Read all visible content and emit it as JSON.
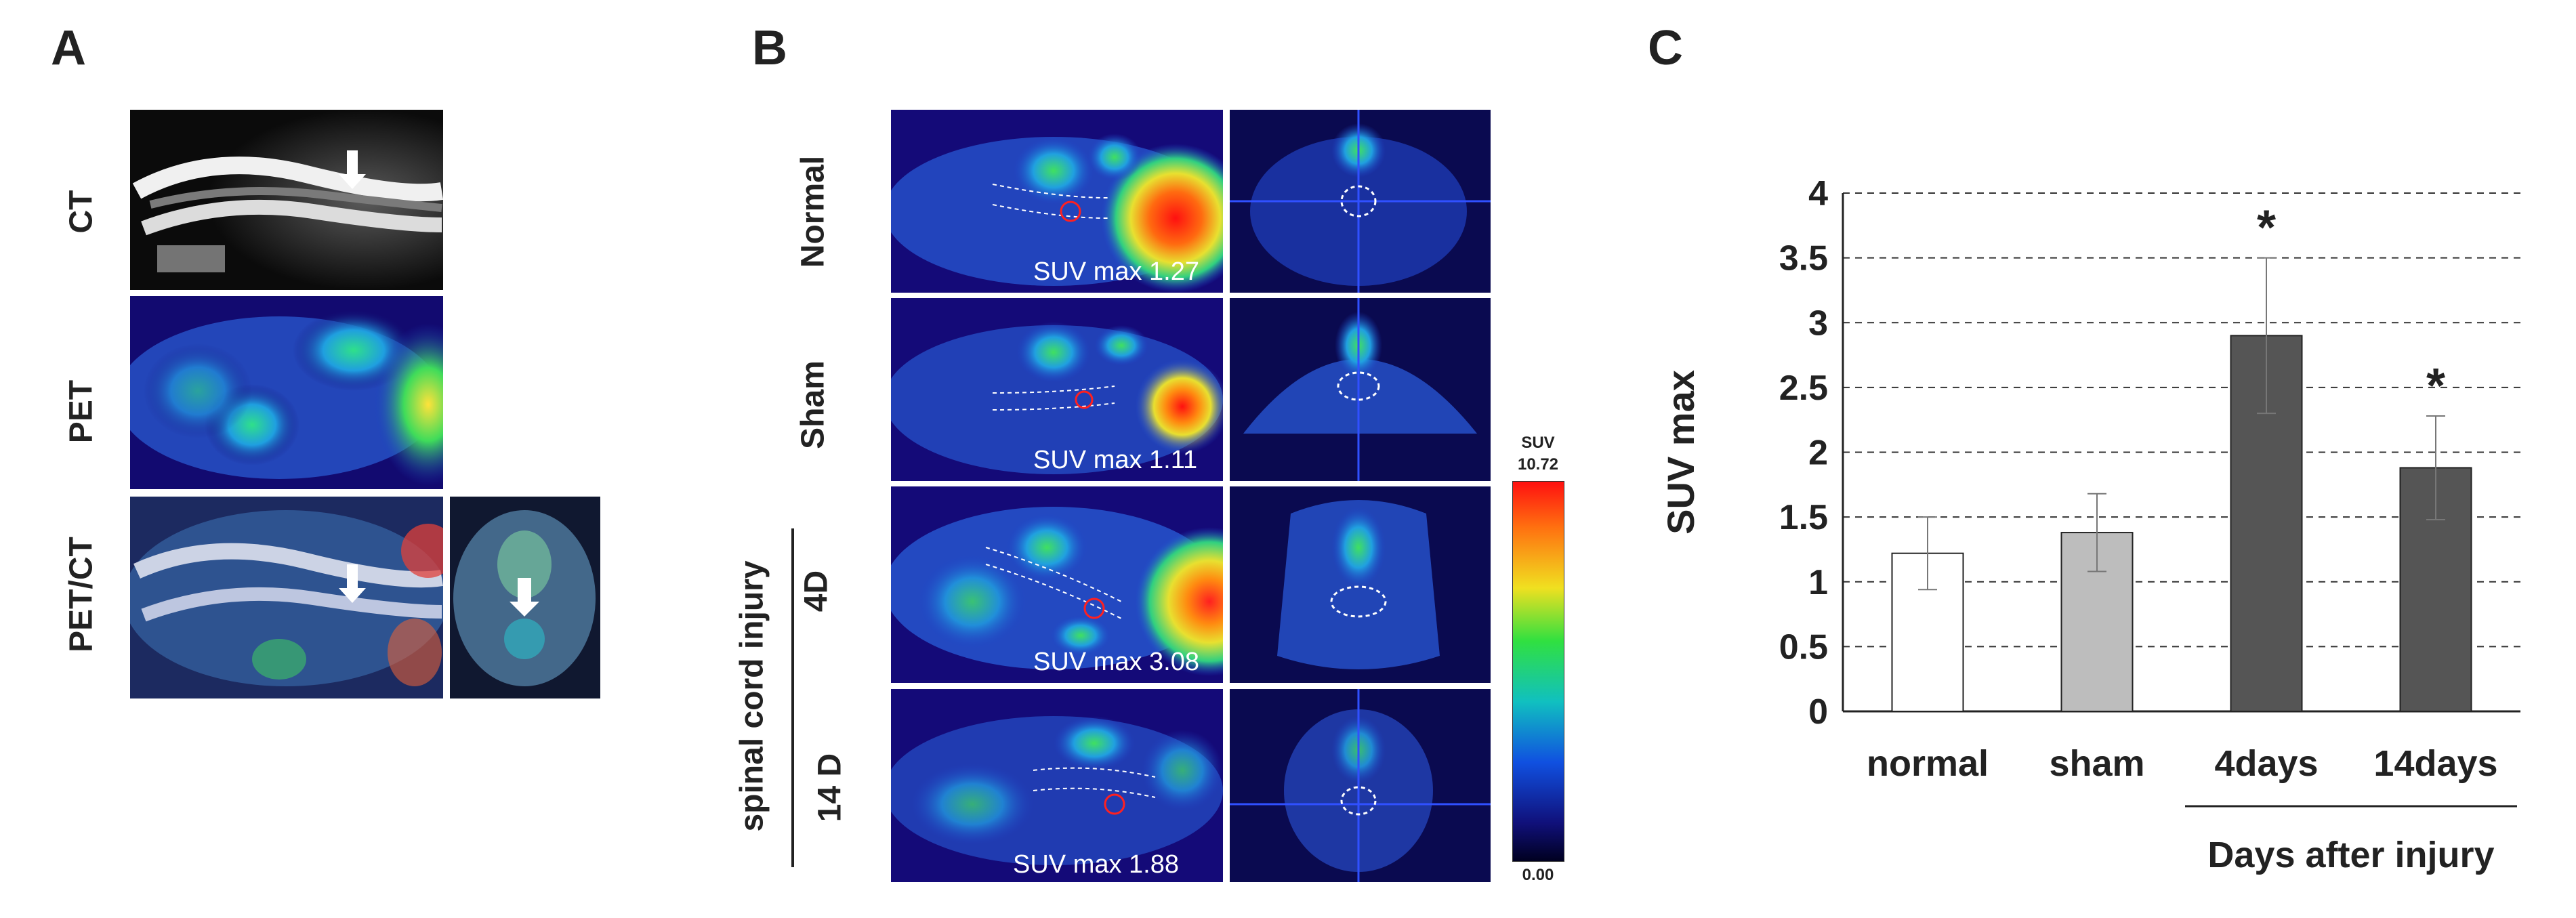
{
  "panels": {
    "a": {
      "letter": "A",
      "rows": [
        {
          "label": "CT"
        },
        {
          "label": "PET"
        },
        {
          "label": "PET/CT"
        }
      ]
    },
    "b": {
      "letter": "B",
      "group_label": "spinal cord injury",
      "rows": [
        {
          "label": "Normal",
          "suv_text": "SUV max 1.27"
        },
        {
          "label": "Sham",
          "suv_text": "SUV max 1.11"
        },
        {
          "label": "4D",
          "suv_text": "SUV max 3.08"
        },
        {
          "label": "14 D",
          "suv_text": "SUV max 1.88"
        }
      ],
      "colorbar": {
        "title": "SUV",
        "max": "10.72",
        "min": "0.00"
      }
    },
    "c": {
      "letter": "C"
    }
  },
  "chart_data": {
    "type": "bar",
    "categories": [
      "normal",
      "sham",
      "4days",
      "14days"
    ],
    "values": [
      1.22,
      1.38,
      2.9,
      1.88
    ],
    "errors": [
      0.28,
      0.3,
      0.6,
      0.4
    ],
    "significance": [
      "",
      "",
      "*",
      "*"
    ],
    "bar_colors": [
      "#ffffff",
      "#bdbdbd",
      "#555555",
      "#555555"
    ],
    "ylabel": "SUV max",
    "xlabel": "",
    "group_label": "Days after injury",
    "ylim": [
      0,
      4
    ],
    "yticks": [
      "0",
      "0.5",
      "1",
      "1.5",
      "2",
      "2.5",
      "3",
      "3.5",
      "4"
    ],
    "grid": true
  }
}
